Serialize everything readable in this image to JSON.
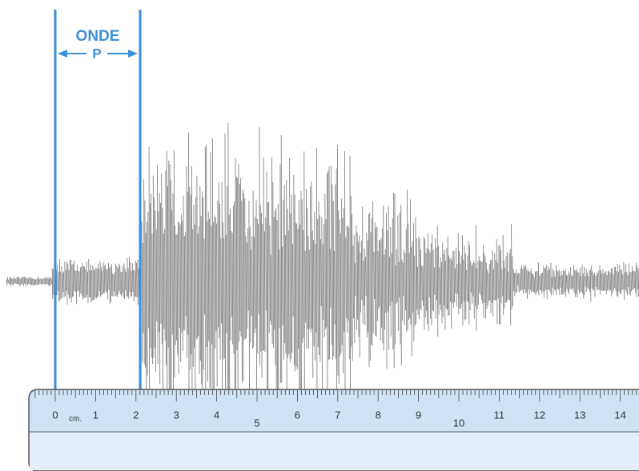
{
  "label": {
    "line1": "ONDE",
    "line2": "P"
  },
  "ruler": {
    "unit": "cm.",
    "numbers": [
      "0",
      "1",
      "2",
      "3",
      "4",
      "5",
      "6",
      "7",
      "8",
      "9",
      "10",
      "11",
      "12",
      "13",
      "14"
    ]
  }
}
